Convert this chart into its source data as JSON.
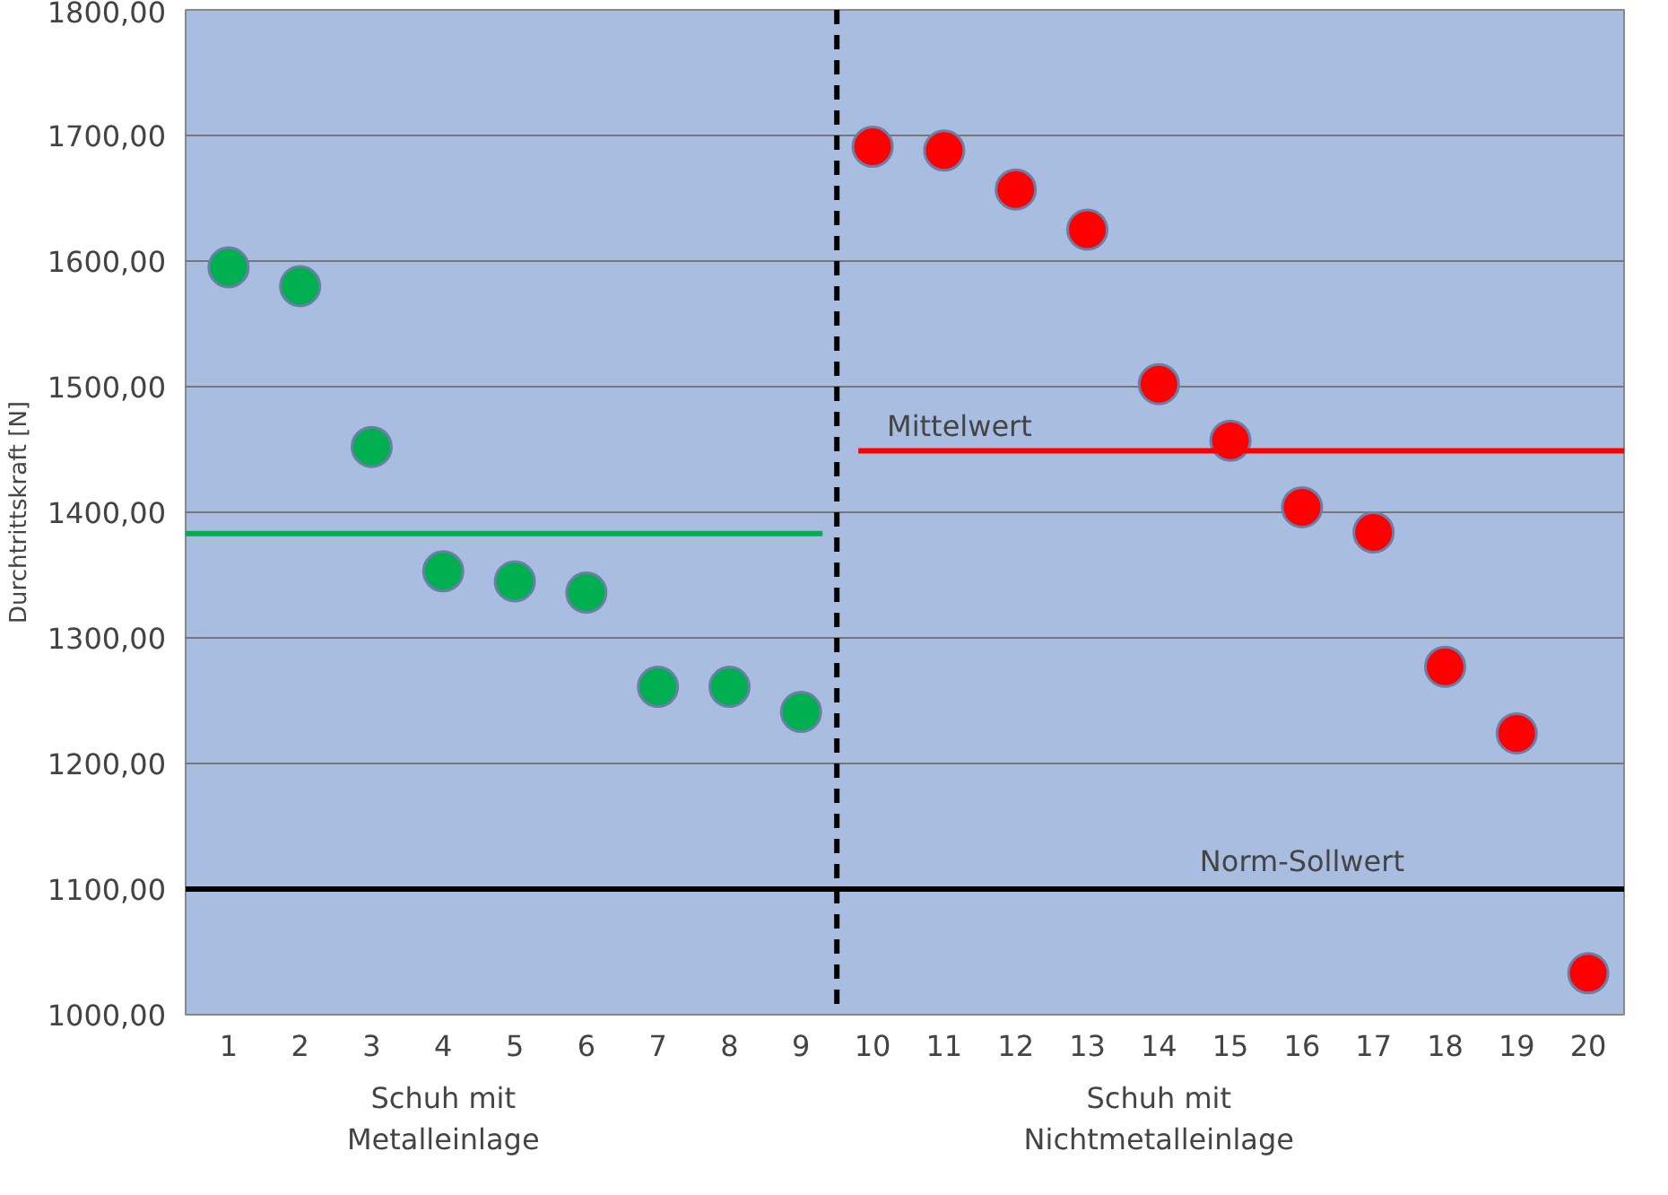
{
  "chart_data": {
    "type": "scatter",
    "ylabel": "Durchtrittskraft [N]",
    "xlim": [
      0.4,
      20.5
    ],
    "xticks": [
      1,
      2,
      3,
      4,
      5,
      6,
      7,
      8,
      9,
      10,
      11,
      12,
      13,
      14,
      15,
      16,
      17,
      18,
      19,
      20
    ],
    "ylim": [
      1000,
      1800
    ],
    "yticks": [
      {
        "value": 1000,
        "label": "1000,00"
      },
      {
        "value": 1100,
        "label": "1100,00"
      },
      {
        "value": 1200,
        "label": "1200,00"
      },
      {
        "value": 1300,
        "label": "1300,00"
      },
      {
        "value": 1400,
        "label": "1400,00"
      },
      {
        "value": 1500,
        "label": "1500,00"
      },
      {
        "value": 1600,
        "label": "1600,00"
      },
      {
        "value": 1700,
        "label": "1700,00"
      },
      {
        "value": 1800,
        "label": "1800,00"
      }
    ],
    "grid": "y",
    "marker": "circle",
    "series": [
      {
        "color": "#00b050",
        "x": [
          1,
          2,
          3,
          4,
          5,
          6,
          7,
          8,
          9
        ],
        "values": [
          1595,
          1580,
          1452,
          1353,
          1345,
          1336,
          1261,
          1261,
          1241
        ]
      },
      {
        "color": "#ff0000",
        "x": [
          10,
          11,
          12,
          13,
          14,
          15,
          16,
          17,
          18,
          19,
          20
        ],
        "values": [
          1691,
          1688,
          1657,
          1625,
          1502,
          1457,
          1404,
          1384,
          1277,
          1224,
          1033
        ]
      },
      {
        "type": "line",
        "marker": "none",
        "color": "#00b050",
        "x": [
          0.4,
          9.3
        ],
        "values": [
          1383,
          1383
        ]
      },
      {
        "type": "line",
        "marker": "none",
        "color": "#ff0000",
        "x": [
          9.8,
          20.5
        ],
        "values": [
          1449,
          1449
        ]
      }
    ],
    "ref_lines": [
      {
        "axis": "x",
        "value": 9.5,
        "label": null,
        "color": "#000000",
        "line_style": "dashed"
      },
      {
        "axis": "y",
        "value": 1100,
        "label": "Norm-Sollwert",
        "color": "#000000"
      }
    ],
    "annotations": [
      {
        "text": "Mittelwert",
        "x": 10.2,
        "y": 1449
      },
      "Schuh mit\nMetalleinlage",
      "Schuh mit\nNichtmetalleinlage"
    ]
  }
}
